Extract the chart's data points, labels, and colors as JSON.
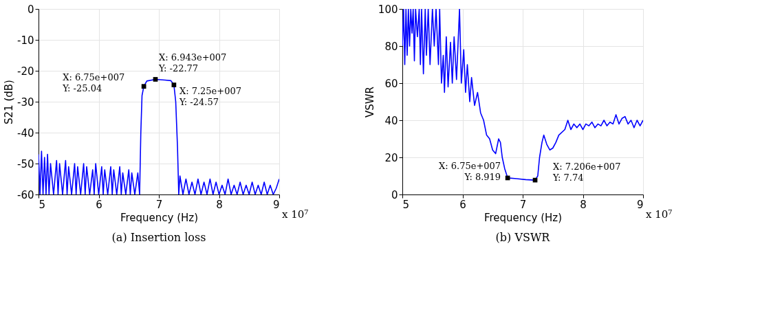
{
  "chart_data": [
    {
      "type": "line",
      "title": "(a) Insertion loss",
      "xlabel": "Frequency (Hz)",
      "ylabel": "S21 (dB)",
      "xlim": [
        5,
        9
      ],
      "xticks": [
        5,
        6,
        7,
        8,
        9
      ],
      "ylim": [
        -60,
        0
      ],
      "yticks": [
        -60,
        -50,
        -40,
        -30,
        -20,
        -10,
        0
      ],
      "grid": true,
      "series": [
        {
          "color": "#0000ff",
          "x": [
            5.0,
            5.025,
            5.05,
            5.075,
            5.1,
            5.125,
            5.15,
            5.175,
            5.2,
            5.25,
            5.3,
            5.325,
            5.35,
            5.4,
            5.45,
            5.475,
            5.5,
            5.55,
            5.6,
            5.625,
            5.65,
            5.7,
            5.75,
            5.775,
            5.8,
            5.85,
            5.9,
            5.925,
            5.95,
            6.0,
            6.05,
            6.075,
            6.1,
            6.15,
            6.2,
            6.225,
            6.25,
            6.3,
            6.35,
            6.375,
            6.4,
            6.45,
            6.5,
            6.525,
            6.55,
            6.6,
            6.65,
            6.68,
            6.7,
            6.72,
            6.75,
            6.8,
            6.943,
            7.1,
            7.2,
            7.25,
            7.28,
            7.31,
            7.33,
            7.35,
            7.4,
            7.45,
            7.5,
            7.55,
            7.6,
            7.65,
            7.7,
            7.75,
            7.8,
            7.85,
            7.9,
            7.95,
            8.0,
            8.05,
            8.1,
            8.15,
            8.2,
            8.25,
            8.3,
            8.35,
            8.4,
            8.45,
            8.5,
            8.55,
            8.6,
            8.65,
            8.7,
            8.75,
            8.8,
            8.85,
            8.9,
            8.95,
            9.0
          ],
          "values": [
            -47,
            -60,
            -46,
            -60,
            -48,
            -60,
            -47,
            -60,
            -50,
            -60,
            -49,
            -60,
            -50,
            -60,
            -49,
            -60,
            -51,
            -60,
            -50,
            -60,
            -51,
            -60,
            -50,
            -60,
            -51,
            -60,
            -52,
            -60,
            -50,
            -60,
            -51,
            -60,
            -52,
            -60,
            -51,
            -60,
            -52,
            -60,
            -51,
            -60,
            -53,
            -60,
            -52,
            -60,
            -53,
            -60,
            -53,
            -60,
            -40,
            -28,
            -25.04,
            -23.3,
            -22.77,
            -23,
            -23.2,
            -24.57,
            -30,
            -45,
            -60,
            -54,
            -60,
            -55,
            -60,
            -56,
            -60,
            -55,
            -60,
            -56,
            -60,
            -55,
            -60,
            -56,
            -60,
            -57,
            -60,
            -55,
            -60,
            -57,
            -60,
            -56,
            -60,
            -57,
            -60,
            -56,
            -60,
            -57,
            -60,
            -56,
            -60,
            -57,
            -60,
            -58,
            -55
          ]
        },
        {
          "type": "scatter",
          "marker": "square",
          "color": "#000000",
          "x": [
            6.75,
            6.943,
            7.25
          ],
          "values": [
            -25.04,
            -22.77,
            -24.57
          ]
        }
      ],
      "annotations": [
        {
          "text": "X: 6.75e+007\nY: -25.04",
          "x": 6.75,
          "y": -25.04
        },
        {
          "text": "X: 6.943e+007\nY: -22.77",
          "x": 6.943,
          "y": -22.77
        },
        {
          "text": "X: 7.25e+007\nY: -24.57",
          "x": 7.25,
          "y": -24.57
        },
        "x 10⁷"
      ]
    },
    {
      "type": "line",
      "title": "(b) VSWR",
      "xlabel": "Frequency (Hz)",
      "ylabel": "VSWR",
      "xlim": [
        5,
        9
      ],
      "xticks": [
        5,
        6,
        7,
        8,
        9
      ],
      "ylim": [
        0,
        100
      ],
      "yticks": [
        0,
        20,
        40,
        60,
        80,
        100
      ],
      "grid": true,
      "series": [
        {
          "color": "#0000ff",
          "x": [
            5.0,
            5.02,
            5.04,
            5.06,
            5.08,
            5.1,
            5.12,
            5.14,
            5.16,
            5.18,
            5.2,
            5.22,
            5.25,
            5.28,
            5.3,
            5.32,
            5.35,
            5.38,
            5.4,
            5.43,
            5.46,
            5.5,
            5.53,
            5.56,
            5.6,
            5.62,
            5.65,
            5.68,
            5.7,
            5.73,
            5.76,
            5.8,
            5.83,
            5.86,
            5.9,
            5.95,
            5.98,
            6.02,
            6.05,
            6.08,
            6.12,
            6.15,
            6.2,
            6.25,
            6.3,
            6.35,
            6.4,
            6.45,
            6.5,
            6.55,
            6.6,
            6.63,
            6.66,
            6.7,
            6.75,
            6.9,
            7.05,
            7.206,
            7.25,
            7.28,
            7.32,
            7.35,
            7.4,
            7.45,
            7.5,
            7.55,
            7.6,
            7.7,
            7.75,
            7.8,
            7.85,
            7.9,
            7.95,
            8.0,
            8.05,
            8.1,
            8.15,
            8.2,
            8.25,
            8.3,
            8.35,
            8.4,
            8.45,
            8.5,
            8.55,
            8.6,
            8.65,
            8.7,
            8.75,
            8.8,
            8.85,
            8.9,
            8.95,
            9.0
          ],
          "values": [
            80,
            100,
            70,
            100,
            75,
            100,
            80,
            100,
            87,
            100,
            72,
            100,
            85,
            100,
            70,
            100,
            65,
            100,
            75,
            100,
            70,
            100,
            80,
            100,
            70,
            100,
            60,
            75,
            55,
            85,
            58,
            82,
            60,
            85,
            62,
            100,
            60,
            78,
            55,
            70,
            50,
            63,
            48,
            55,
            44,
            40,
            32,
            30,
            24,
            22,
            30,
            28,
            20,
            14,
            8.919,
            8.5,
            8,
            7.74,
            10,
            20,
            28,
            32,
            27,
            24,
            25,
            28,
            32,
            35,
            40,
            35,
            38,
            36,
            38,
            35,
            38,
            37,
            39,
            36,
            38,
            37,
            40,
            37,
            39,
            38,
            43,
            38,
            41,
            42,
            38,
            40,
            36,
            40,
            37,
            40
          ]
        },
        {
          "type": "scatter",
          "marker": "square",
          "color": "#000000",
          "x": [
            6.75,
            7.206
          ],
          "values": [
            8.919,
            7.74
          ]
        }
      ],
      "annotations": [
        {
          "text": "X: 6.75e+007\nY: 8.919",
          "x": 6.75,
          "y": 8.919
        },
        {
          "text": "X: 7.206e+007\nY: 7.74",
          "x": 7.206,
          "y": 7.74
        },
        "x 10⁷"
      ]
    }
  ]
}
